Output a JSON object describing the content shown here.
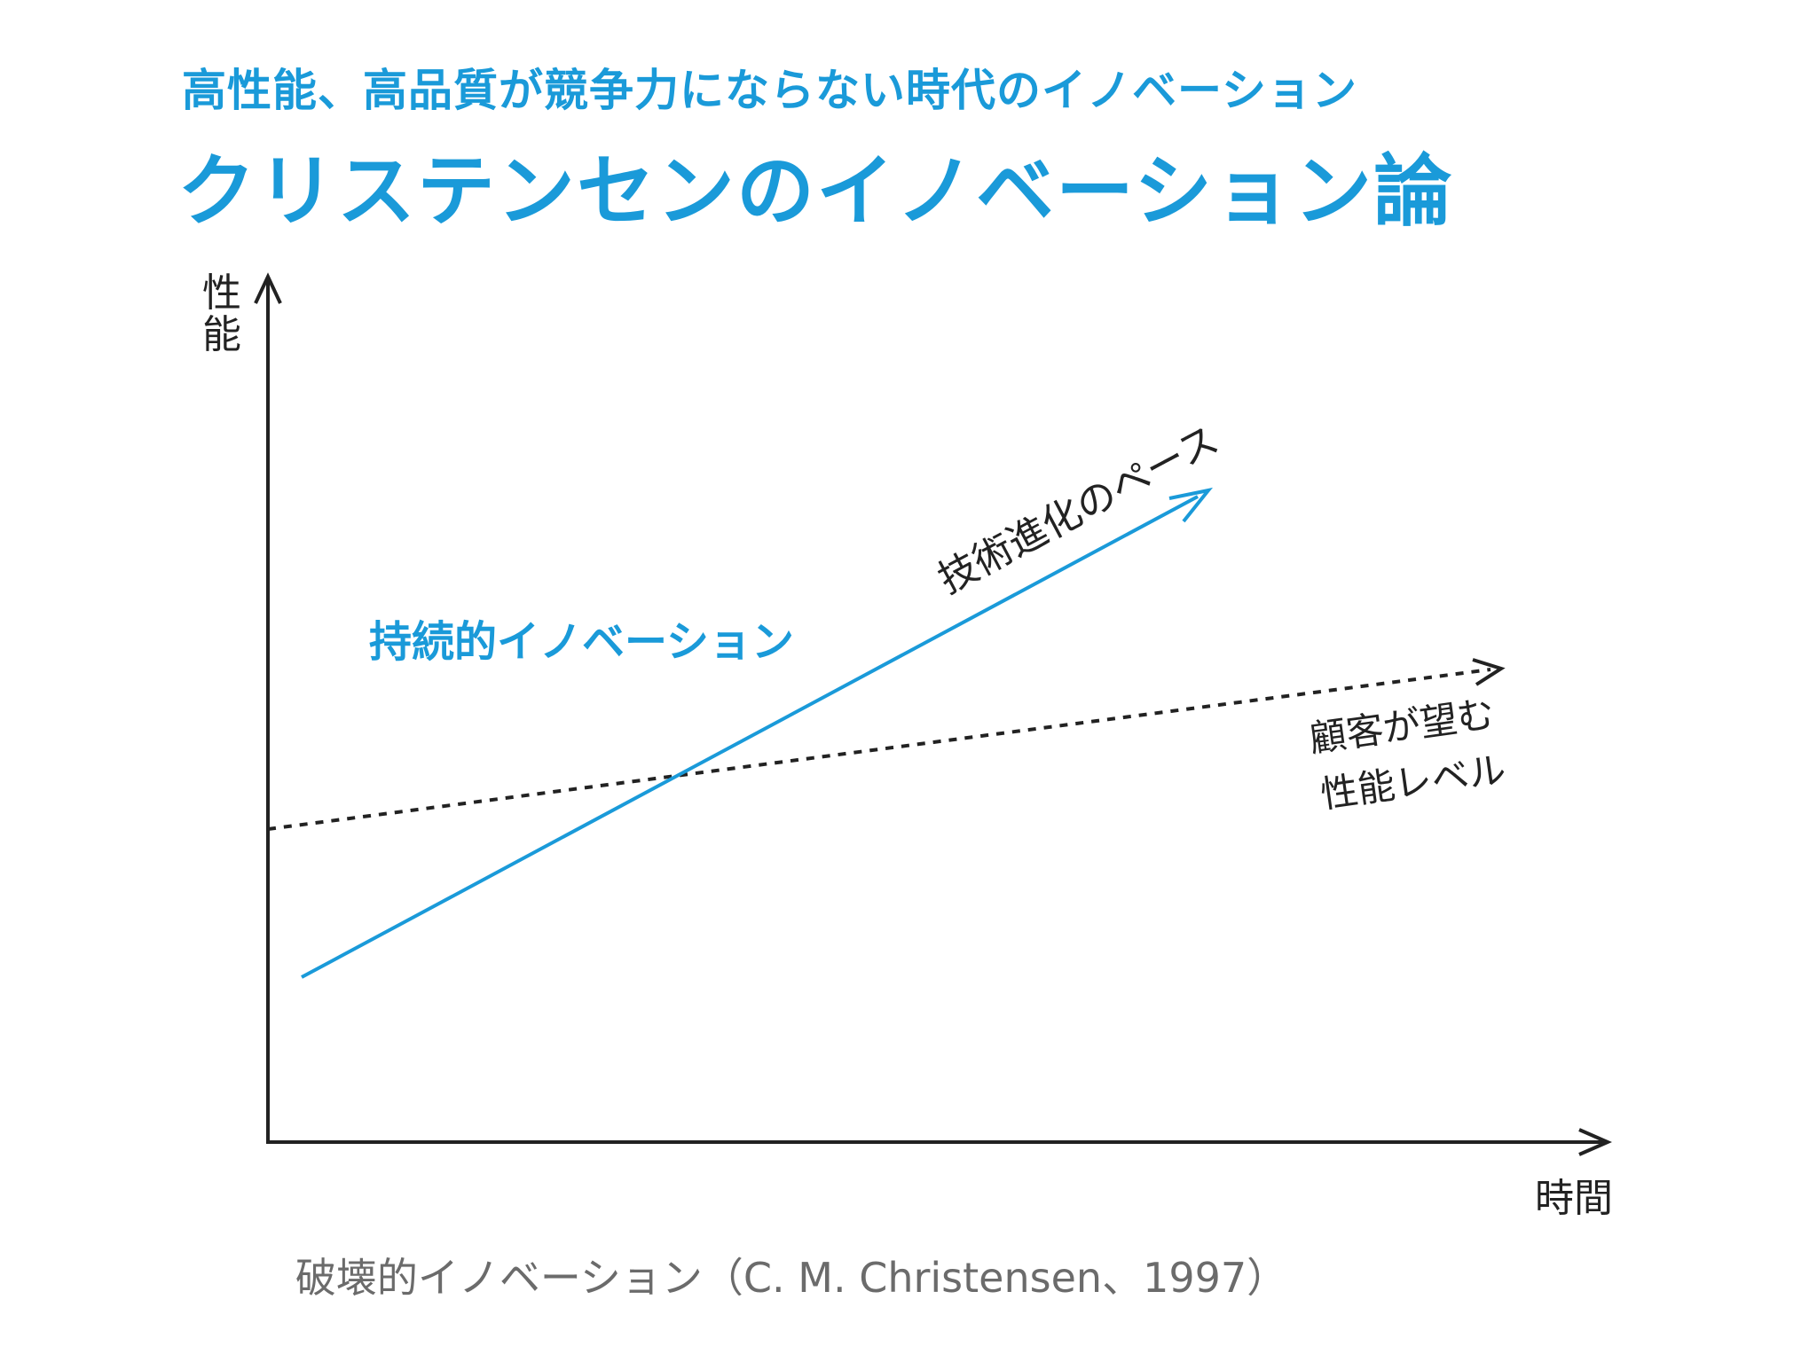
{
  "subtitle": "高性能、高品質が競争力にならない時代のイノベーション",
  "title": "クリステンセンのイノベーション論",
  "caption": "破壊的イノベーション（C. M. Christensen、1997）",
  "colors": {
    "accent": "#1a9ad9",
    "text": "#222222",
    "caption": "#6b6b6b"
  },
  "diagram": {
    "y_axis_label": [
      "性",
      "能"
    ],
    "x_axis_label": "時間",
    "technology_label": "技術進化のペース",
    "sustaining_label": "持続的イノベーション",
    "customer_label": [
      "顧客が望む",
      "性能レベル"
    ]
  }
}
